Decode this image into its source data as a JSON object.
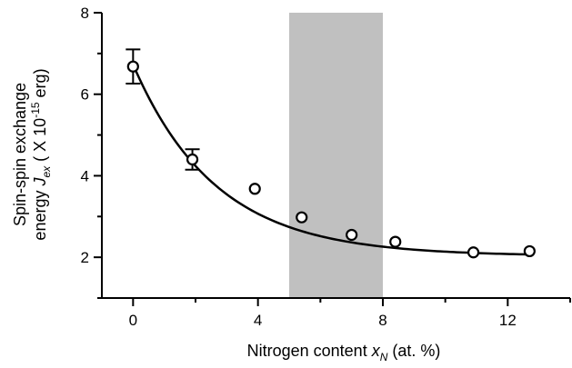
{
  "chart_data": {
    "type": "scatter",
    "x_axis": {
      "label_prefix": "Nitrogen content ",
      "label_var": "x",
      "label_sub": "N",
      "label_suffix": " (at. %)",
      "range": [
        -1,
        14
      ],
      "ticks": [
        0,
        4,
        8,
        12
      ],
      "minor_ticks": [
        2,
        6,
        10,
        14
      ]
    },
    "y_axis": {
      "label_line1": "Spin-spin exchange",
      "label_line2_prefix": "energy ",
      "label_var": "J",
      "label_sub": "ex",
      "label_mid": " ( X 10",
      "label_sup": "-15",
      "label_suffix": " erg)",
      "range": [
        1,
        8
      ],
      "ticks": [
        2,
        4,
        6,
        8
      ],
      "minor_ticks": [
        1,
        3,
        5,
        7
      ]
    },
    "shaded_region": {
      "x_start": 5,
      "x_end": 8,
      "color": "#c0c0c0"
    },
    "points": [
      {
        "x": 0.0,
        "y": 6.68,
        "err": 0.42
      },
      {
        "x": 1.9,
        "y": 4.4,
        "err": 0.25
      },
      {
        "x": 3.9,
        "y": 3.68
      },
      {
        "x": 5.4,
        "y": 2.98
      },
      {
        "x": 7.0,
        "y": 2.55
      },
      {
        "x": 8.4,
        "y": 2.38
      },
      {
        "x": 10.9,
        "y": 2.12
      },
      {
        "x": 12.7,
        "y": 2.15
      }
    ],
    "fit_curve": {
      "type": "exponential-decay",
      "a": 2.03,
      "b": 4.7,
      "tau": 2.65,
      "x_start": 0,
      "x_end": 12.7
    },
    "grid": false,
    "legend": "none"
  }
}
